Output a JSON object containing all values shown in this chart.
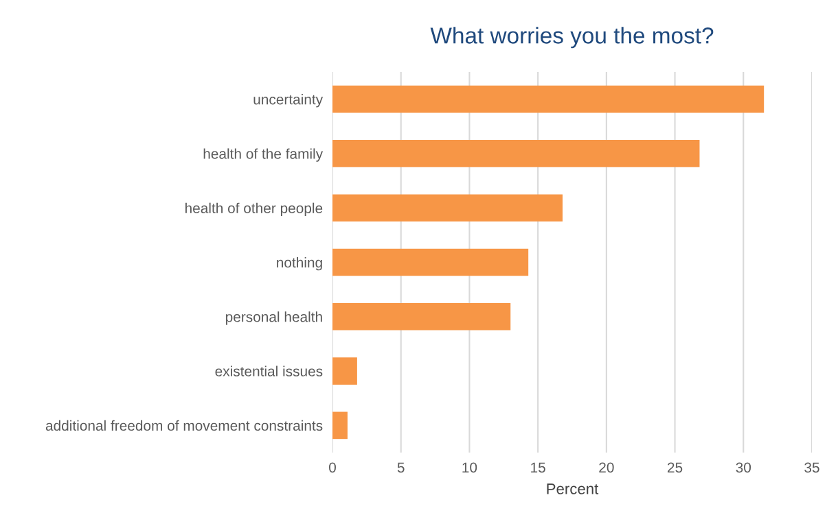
{
  "chart_data": {
    "type": "bar",
    "orientation": "horizontal",
    "title": "What worries you the most?",
    "xlabel": "Percent",
    "categories": [
      "uncertainty",
      "health of the family",
      "health of other people",
      "nothing",
      "personal health",
      "existential issues",
      "additional freedom of movement constraints"
    ],
    "values": [
      31.5,
      26.8,
      16.8,
      14.3,
      13.0,
      1.8,
      1.1
    ],
    "color": "#f79646",
    "xlim": [
      0,
      35
    ],
    "xticks": [
      0,
      5,
      10,
      15,
      20,
      25,
      30,
      35
    ],
    "grid": "x",
    "legend": false
  }
}
